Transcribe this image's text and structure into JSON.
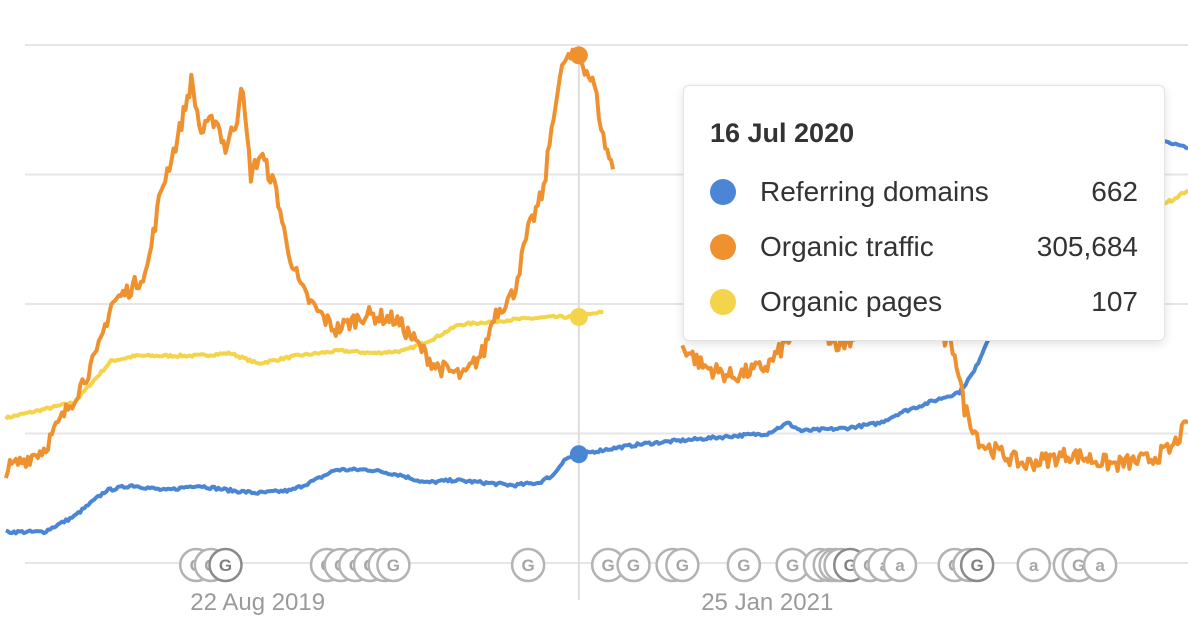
{
  "chart_data": {
    "type": "line",
    "x_range": [
      "2018-12-01",
      "2022-04-01"
    ],
    "ylim": [
      0,
      100
    ],
    "grid": true,
    "x_tick_labels": [
      {
        "label": "22 Aug 2019",
        "date": "2019-08-22"
      },
      {
        "label": "25 Jan 2021",
        "date": "2021-01-25"
      }
    ],
    "crosshair_date": "2020-07-16",
    "series": [
      {
        "name": "Referring domains",
        "color": "#4a86d4",
        "points": [
          [
            "2018-12-07",
            6
          ],
          [
            "2019-01-15",
            6
          ],
          [
            "2019-02-15",
            9
          ],
          [
            "2019-03-20",
            14
          ],
          [
            "2019-04-15",
            15
          ],
          [
            "2019-05-20",
            14
          ],
          [
            "2019-06-20",
            15
          ],
          [
            "2019-07-25",
            14
          ],
          [
            "2019-08-22",
            13.5
          ],
          [
            "2019-09-25",
            14
          ],
          [
            "2019-10-20",
            16
          ],
          [
            "2019-11-10",
            18
          ],
          [
            "2019-12-15",
            18
          ],
          [
            "2020-01-15",
            17
          ],
          [
            "2020-02-10",
            15.5
          ],
          [
            "2020-03-10",
            16
          ],
          [
            "2020-04-10",
            15.5
          ],
          [
            "2020-05-10",
            15
          ],
          [
            "2020-06-05",
            15.5
          ],
          [
            "2020-06-20",
            17
          ],
          [
            "2020-07-01",
            20
          ],
          [
            "2020-07-16",
            21
          ],
          [
            "2020-08-15",
            22
          ],
          [
            "2020-09-20",
            23
          ],
          [
            "2020-10-20",
            23.5
          ],
          [
            "2020-11-20",
            24
          ],
          [
            "2020-12-20",
            24.5
          ],
          [
            "2021-01-25",
            25
          ],
          [
            "2021-02-15",
            27
          ],
          [
            "2021-03-01",
            25.5
          ],
          [
            "2021-04-15",
            26
          ],
          [
            "2021-05-20",
            27
          ],
          [
            "2021-06-10",
            29
          ],
          [
            "2021-07-10",
            31
          ],
          [
            "2021-08-10",
            33
          ],
          [
            "2021-08-25",
            37
          ],
          [
            "2021-09-10",
            44
          ],
          [
            "2021-09-25",
            52
          ],
          [
            "2021-10-01",
            57
          ]
        ],
        "tail_points": [
          [
            "2022-03-01",
            82
          ],
          [
            "2022-04-01",
            80
          ]
        ]
      },
      {
        "name": "Organic traffic",
        "color": "#f0912f",
        "points": [
          [
            "2018-12-07",
            18
          ],
          [
            "2019-01-15",
            22
          ],
          [
            "2019-02-15",
            32
          ],
          [
            "2019-03-10",
            40
          ],
          [
            "2019-03-25",
            50
          ],
          [
            "2019-04-20",
            54
          ],
          [
            "2019-05-01",
            57
          ],
          [
            "2019-05-15",
            72
          ],
          [
            "2019-06-01",
            82
          ],
          [
            "2019-06-15",
            93
          ],
          [
            "2019-06-25",
            83
          ],
          [
            "2019-07-10",
            86
          ],
          [
            "2019-07-20",
            80
          ],
          [
            "2019-08-01",
            86
          ],
          [
            "2019-08-05",
            93
          ],
          [
            "2019-08-15",
            75
          ],
          [
            "2019-08-25",
            79
          ],
          [
            "2019-09-10",
            72
          ],
          [
            "2019-09-20",
            62
          ],
          [
            "2019-10-05",
            53
          ],
          [
            "2019-10-20",
            49
          ],
          [
            "2019-11-10",
            45
          ],
          [
            "2019-12-10",
            48
          ],
          [
            "2020-01-10",
            47
          ],
          [
            "2020-01-25",
            44
          ],
          [
            "2020-02-20",
            38
          ],
          [
            "2020-03-20",
            36
          ],
          [
            "2020-04-10",
            41
          ],
          [
            "2020-04-20",
            48
          ],
          [
            "2020-05-10",
            52
          ],
          [
            "2020-05-25",
            64
          ],
          [
            "2020-06-10",
            72
          ],
          [
            "2020-06-20",
            87
          ],
          [
            "2020-07-01",
            97
          ],
          [
            "2020-07-16",
            98
          ],
          [
            "2020-08-01",
            92
          ],
          [
            "2020-08-10",
            82
          ],
          [
            "2020-08-20",
            76
          ]
        ],
        "segments_after_tooltip": [
          [
            [
              "2020-10-30",
              42
            ],
            [
              "2020-11-20",
              38
            ],
            [
              "2020-12-20",
              36
            ],
            [
              "2021-01-25",
              38
            ],
            [
              "2021-02-20",
              44
            ],
            [
              "2021-03-15",
              46
            ],
            [
              "2021-04-10",
              42
            ],
            [
              "2021-05-10",
              46
            ],
            [
              "2021-06-10",
              45
            ],
            [
              "2021-07-05",
              48
            ],
            [
              "2021-07-20",
              44
            ],
            [
              "2021-08-05",
              41
            ],
            [
              "2021-08-15",
              30
            ],
            [
              "2021-09-01",
              23
            ],
            [
              "2021-10-15",
              19
            ],
            [
              "2021-12-01",
              21
            ],
            [
              "2022-01-15",
              19
            ],
            [
              "2022-02-20",
              20
            ],
            [
              "2022-03-15",
              22
            ],
            [
              "2022-04-01",
              27
            ]
          ]
        ]
      },
      {
        "name": "Organic pages",
        "color": "#f4d44b",
        "points": [
          [
            "2018-12-07",
            28
          ],
          [
            "2019-02-15",
            31
          ],
          [
            "2019-03-25",
            39
          ],
          [
            "2019-04-20",
            40
          ],
          [
            "2019-06-20",
            40
          ],
          [
            "2019-07-25",
            40.5
          ],
          [
            "2019-08-22",
            38.5
          ],
          [
            "2019-10-01",
            40
          ],
          [
            "2019-11-15",
            41
          ],
          [
            "2019-12-20",
            40.5
          ],
          [
            "2020-01-20",
            41
          ],
          [
            "2020-02-20",
            43.5
          ],
          [
            "2020-03-15",
            46
          ],
          [
            "2020-05-10",
            47
          ],
          [
            "2020-06-20",
            47.5
          ],
          [
            "2020-07-16",
            47.5
          ],
          [
            "2020-08-10",
            48.5
          ]
        ],
        "tail_points": [
          [
            "2022-02-10",
            68
          ],
          [
            "2022-03-15",
            70
          ],
          [
            "2022-04-01",
            72
          ]
        ]
      }
    ],
    "event_markers": [
      {
        "date": "2019-06-20",
        "label": "G"
      },
      {
        "date": "2019-07-05",
        "label": "G"
      },
      {
        "date": "2019-07-20",
        "label": "G",
        "dark": true
      },
      {
        "date": "2019-11-01",
        "label": "G"
      },
      {
        "date": "2019-11-15",
        "label": "G"
      },
      {
        "date": "2019-11-30",
        "label": "G"
      },
      {
        "date": "2019-12-15",
        "label": "G"
      },
      {
        "date": "2019-12-30",
        "label": "G"
      },
      {
        "date": "2020-01-08",
        "label": "G"
      },
      {
        "date": "2020-05-25",
        "label": "G"
      },
      {
        "date": "2020-08-15",
        "label": "G"
      },
      {
        "date": "2020-09-10",
        "label": "G"
      },
      {
        "date": "2020-10-20",
        "label": "G"
      },
      {
        "date": "2020-10-30",
        "label": "G"
      },
      {
        "date": "2021-01-01",
        "label": "G"
      },
      {
        "date": "2021-02-20",
        "label": "G"
      },
      {
        "date": "2021-03-20",
        "label": "a"
      },
      {
        "date": "2021-03-30",
        "label": "a"
      },
      {
        "date": "2021-04-05",
        "label": "a"
      },
      {
        "date": "2021-04-10",
        "label": "a"
      },
      {
        "date": "2021-04-20",
        "label": "G",
        "dark": true
      },
      {
        "date": "2021-05-10",
        "label": "G"
      },
      {
        "date": "2021-05-25",
        "label": "a"
      },
      {
        "date": "2021-06-10",
        "label": "a"
      },
      {
        "date": "2021-08-05",
        "label": "G"
      },
      {
        "date": "2021-08-20",
        "label": "G"
      },
      {
        "date": "2021-08-28",
        "label": "G",
        "dark": true
      },
      {
        "date": "2021-10-25",
        "label": "a"
      },
      {
        "date": "2021-12-01",
        "label": "a"
      },
      {
        "date": "2021-12-10",
        "label": "G"
      },
      {
        "date": "2022-01-01",
        "label": "a"
      }
    ]
  },
  "tooltip": {
    "date": "16 Jul 2020",
    "rows": [
      {
        "name": "Referring domains",
        "value": "662",
        "color": "#4a86d4"
      },
      {
        "name": "Organic traffic",
        "value": "305,684",
        "color": "#f0912f"
      },
      {
        "name": "Organic pages",
        "value": "107",
        "color": "#f4d44b"
      }
    ]
  }
}
